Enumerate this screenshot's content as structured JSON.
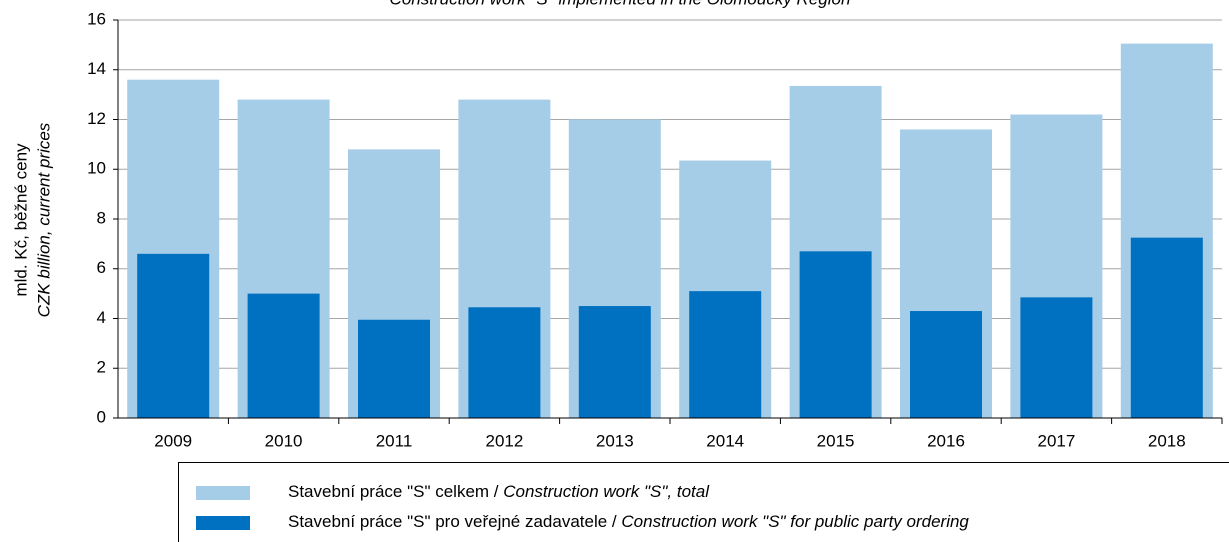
{
  "chart_data": {
    "type": "bar",
    "title": "Construction work \"S\" implemented in the Olomoucký Region",
    "ylabel": [
      "mld. Kč, běžné ceny",
      "CZK billion, current prices"
    ],
    "categories": [
      "2009",
      "2010",
      "2011",
      "2012",
      "2013",
      "2014",
      "2015",
      "2016",
      "2017",
      "2018"
    ],
    "series": [
      {
        "name": "Stavební práce \"S\" celkem / Construction work \"S\", total",
        "color": "#a6cde8",
        "values": [
          13.6,
          12.8,
          10.8,
          12.8,
          12.0,
          10.35,
          13.35,
          11.6,
          12.2,
          15.05
        ]
      },
      {
        "name": "Stavební práce \"S\" pro veřejné zadavatele / Construction work \"S\" for public party ordering",
        "color": "#0070c0",
        "values": [
          6.6,
          5.0,
          3.95,
          4.45,
          4.5,
          5.1,
          6.7,
          4.3,
          4.85,
          7.25
        ]
      }
    ],
    "overlap": true,
    "ylim": [
      0,
      16
    ],
    "yticks": [
      0,
      2,
      4,
      6,
      8,
      10,
      12,
      14,
      16
    ],
    "grid": true
  }
}
